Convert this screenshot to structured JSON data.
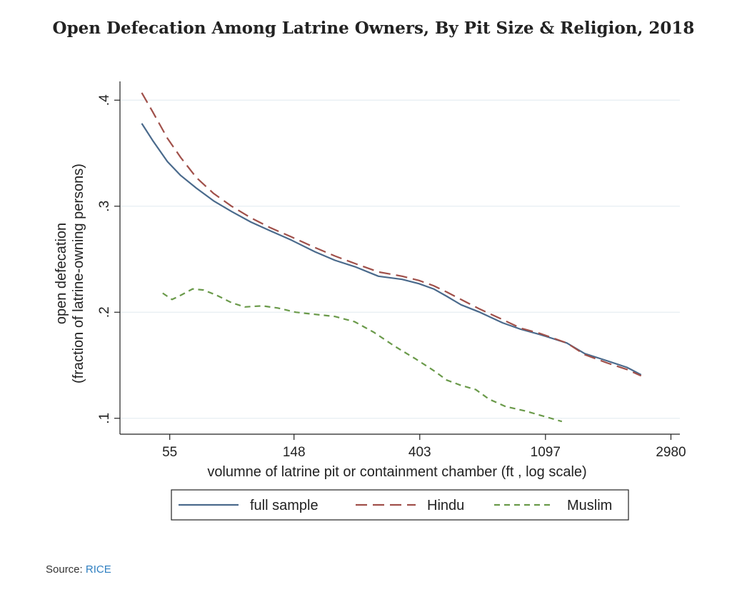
{
  "title": "Open Defecation Among Latrine Owners, By Pit Size & Religion, 2018",
  "source_prefix": "Source:",
  "source_link": "RICE",
  "colors": {
    "full": "#4a6a8c",
    "hindu": "#a0504a",
    "muslim": "#6a9a4a",
    "grid": "#e6eef2",
    "axis": "#222222"
  },
  "chart_data": {
    "type": "line",
    "title": "Open Defecation Among Latrine Owners, By Pit Size & Religion, 2018",
    "xlabel": "volumne of latrine pit or containment chamber (ft , log scale)",
    "ylabel_line1": "open defecation",
    "ylabel_line2": "(fraction of latrine-owning persons)",
    "xscale": "log",
    "xlim": [
      37,
      3200
    ],
    "ylim": [
      0.085,
      0.415
    ],
    "xticks": [
      55,
      148,
      403,
      1097,
      2980
    ],
    "xtick_labels": [
      "55",
      "148",
      "403",
      "1097",
      "2980"
    ],
    "yticks": [
      0.1,
      0.2,
      0.3,
      0.4
    ],
    "ytick_labels": [
      ".1",
      ".2",
      ".3",
      ".4"
    ],
    "grid": true,
    "legend_position": "bottom",
    "series": [
      {
        "name": "full sample",
        "style": "solid",
        "x": [
          44,
          48,
          54,
          60,
          68,
          78,
          90,
          105,
          122,
          145,
          175,
          205,
          240,
          290,
          350,
          400,
          450,
          500,
          560,
          650,
          780,
          900,
          1050,
          1300,
          1500,
          1800,
          2100,
          2350
        ],
        "y": [
          0.378,
          0.362,
          0.342,
          0.329,
          0.317,
          0.305,
          0.295,
          0.285,
          0.277,
          0.268,
          0.257,
          0.249,
          0.243,
          0.234,
          0.231,
          0.227,
          0.222,
          0.215,
          0.207,
          0.2,
          0.19,
          0.184,
          0.179,
          0.171,
          0.161,
          0.154,
          0.148,
          0.141
        ]
      },
      {
        "name": "Hindu",
        "style": "long-dash",
        "x": [
          44,
          48,
          54,
          60,
          68,
          78,
          90,
          105,
          122,
          145,
          175,
          205,
          240,
          290,
          350,
          400,
          450,
          500,
          560,
          650,
          780,
          900,
          1050,
          1300,
          1500,
          1800,
          2100,
          2350
        ],
        "y": [
          0.407,
          0.389,
          0.364,
          0.346,
          0.327,
          0.312,
          0.3,
          0.289,
          0.28,
          0.271,
          0.261,
          0.253,
          0.246,
          0.238,
          0.234,
          0.23,
          0.225,
          0.219,
          0.212,
          0.203,
          0.193,
          0.185,
          0.18,
          0.171,
          0.16,
          0.152,
          0.146,
          0.14
        ]
      },
      {
        "name": "Muslim",
        "style": "short-dash",
        "x": [
          52,
          56,
          60,
          66,
          72,
          80,
          90,
          100,
          115,
          130,
          150,
          175,
          205,
          240,
          280,
          330,
          390,
          450,
          500,
          560,
          630,
          700,
          800,
          930,
          1080,
          1250
        ],
        "y": [
          0.218,
          0.212,
          0.216,
          0.222,
          0.221,
          0.216,
          0.209,
          0.205,
          0.206,
          0.204,
          0.2,
          0.198,
          0.196,
          0.191,
          0.181,
          0.168,
          0.156,
          0.145,
          0.136,
          0.131,
          0.127,
          0.118,
          0.111,
          0.107,
          0.102,
          0.097
        ]
      }
    ]
  }
}
